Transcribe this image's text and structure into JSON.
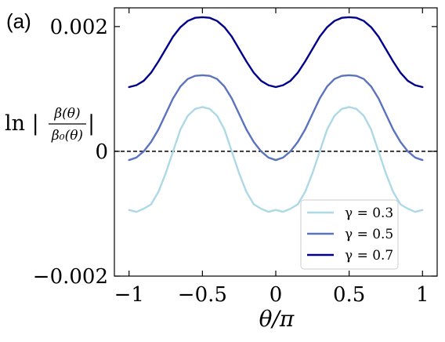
{
  "panel_label": "(a)",
  "chart_data": {
    "type": "line",
    "xlabel": "θ/π",
    "ylabel": {
      "prefix": "ln |",
      "numerator": "β(θ)",
      "denominator": "β₀(θ)",
      "suffix": "|"
    },
    "xlim": [
      -1.1,
      1.1
    ],
    "ylim": [
      -0.002,
      0.0023
    ],
    "x_ticks": [
      -1,
      -0.5,
      0,
      0.5,
      1
    ],
    "x_tick_labels": [
      "−1",
      "−0.5",
      "0",
      "0.5",
      "1"
    ],
    "y_ticks": [
      -0.002,
      0,
      0.002
    ],
    "y_tick_labels": [
      "−0.002",
      "0",
      "0.002"
    ],
    "reference_line": {
      "y": 0,
      "style": "dashed",
      "color": "#000000"
    },
    "legend": {
      "position": "lower-right"
    },
    "series": [
      {
        "name": "γ = 0.3",
        "color": "#add8e6",
        "x": [
          -1,
          -0.95,
          -0.9,
          -0.85,
          -0.8,
          -0.75,
          -0.7,
          -0.65,
          -0.6,
          -0.55,
          -0.5,
          -0.45,
          -0.4,
          -0.35,
          -0.3,
          -0.25,
          -0.2,
          -0.15,
          -0.1,
          -0.05,
          0,
          0.05,
          0.1,
          0.15,
          0.2,
          0.25,
          0.3,
          0.35,
          0.4,
          0.45,
          0.5,
          0.55,
          0.6,
          0.65,
          0.7,
          0.75,
          0.8,
          0.85,
          0.9,
          0.95,
          1
        ],
        "y": [
          -0.00094,
          -0.00097,
          -0.00092,
          -0.00085,
          -0.00065,
          -0.00035,
          0.0,
          0.00035,
          0.00057,
          0.00068,
          0.00071,
          0.00068,
          0.00057,
          0.00035,
          0.0,
          -0.00035,
          -0.00065,
          -0.00085,
          -0.00092,
          -0.00097,
          -0.00094,
          -0.00097,
          -0.00092,
          -0.00085,
          -0.00065,
          -0.00035,
          0.0,
          0.00035,
          0.00057,
          0.00068,
          0.00071,
          0.00068,
          0.00057,
          0.00035,
          0.0,
          -0.00035,
          -0.00065,
          -0.00085,
          -0.00092,
          -0.00097,
          -0.00094
        ]
      },
      {
        "name": "γ = 0.5",
        "color": "#5a72c0",
        "x": [
          -1,
          -0.95,
          -0.9,
          -0.85,
          -0.8,
          -0.75,
          -0.7,
          -0.65,
          -0.6,
          -0.55,
          -0.5,
          -0.45,
          -0.4,
          -0.35,
          -0.3,
          -0.25,
          -0.2,
          -0.15,
          -0.1,
          -0.05,
          0,
          0.05,
          0.1,
          0.15,
          0.2,
          0.25,
          0.3,
          0.35,
          0.4,
          0.45,
          0.5,
          0.55,
          0.6,
          0.65,
          0.7,
          0.75,
          0.8,
          0.85,
          0.9,
          0.95,
          1
        ],
        "y": [
          -0.00014,
          -0.0001,
          0.0,
          0.00015,
          0.00035,
          0.0006,
          0.00085,
          0.00104,
          0.00116,
          0.00121,
          0.00122,
          0.00121,
          0.00116,
          0.00104,
          0.00085,
          0.0006,
          0.00035,
          0.00015,
          0.0,
          -0.0001,
          -0.00014,
          -0.0001,
          0.0,
          0.00015,
          0.00035,
          0.0006,
          0.00085,
          0.00104,
          0.00116,
          0.00121,
          0.00122,
          0.00121,
          0.00116,
          0.00104,
          0.00085,
          0.0006,
          0.00035,
          0.00015,
          0.0,
          -0.0001,
          -0.00014
        ]
      },
      {
        "name": "γ = 0.7",
        "color": "#00008b",
        "x": [
          -1,
          -0.95,
          -0.9,
          -0.85,
          -0.8,
          -0.75,
          -0.7,
          -0.65,
          -0.6,
          -0.55,
          -0.5,
          -0.45,
          -0.4,
          -0.35,
          -0.3,
          -0.25,
          -0.2,
          -0.15,
          -0.1,
          -0.05,
          0,
          0.05,
          0.1,
          0.15,
          0.2,
          0.25,
          0.3,
          0.35,
          0.4,
          0.45,
          0.5,
          0.55,
          0.6,
          0.65,
          0.7,
          0.75,
          0.8,
          0.85,
          0.9,
          0.95,
          1
        ],
        "y": [
          0.00103,
          0.00106,
          0.00113,
          0.00126,
          0.00144,
          0.00164,
          0.00184,
          0.00199,
          0.00209,
          0.00214,
          0.00215,
          0.00214,
          0.00209,
          0.00199,
          0.00184,
          0.00164,
          0.00144,
          0.00126,
          0.00113,
          0.00106,
          0.00103,
          0.00106,
          0.00113,
          0.00126,
          0.00144,
          0.00164,
          0.00184,
          0.00199,
          0.00209,
          0.00214,
          0.00215,
          0.00214,
          0.00209,
          0.00199,
          0.00184,
          0.00164,
          0.00144,
          0.00126,
          0.00113,
          0.00106,
          0.00103
        ]
      }
    ]
  }
}
